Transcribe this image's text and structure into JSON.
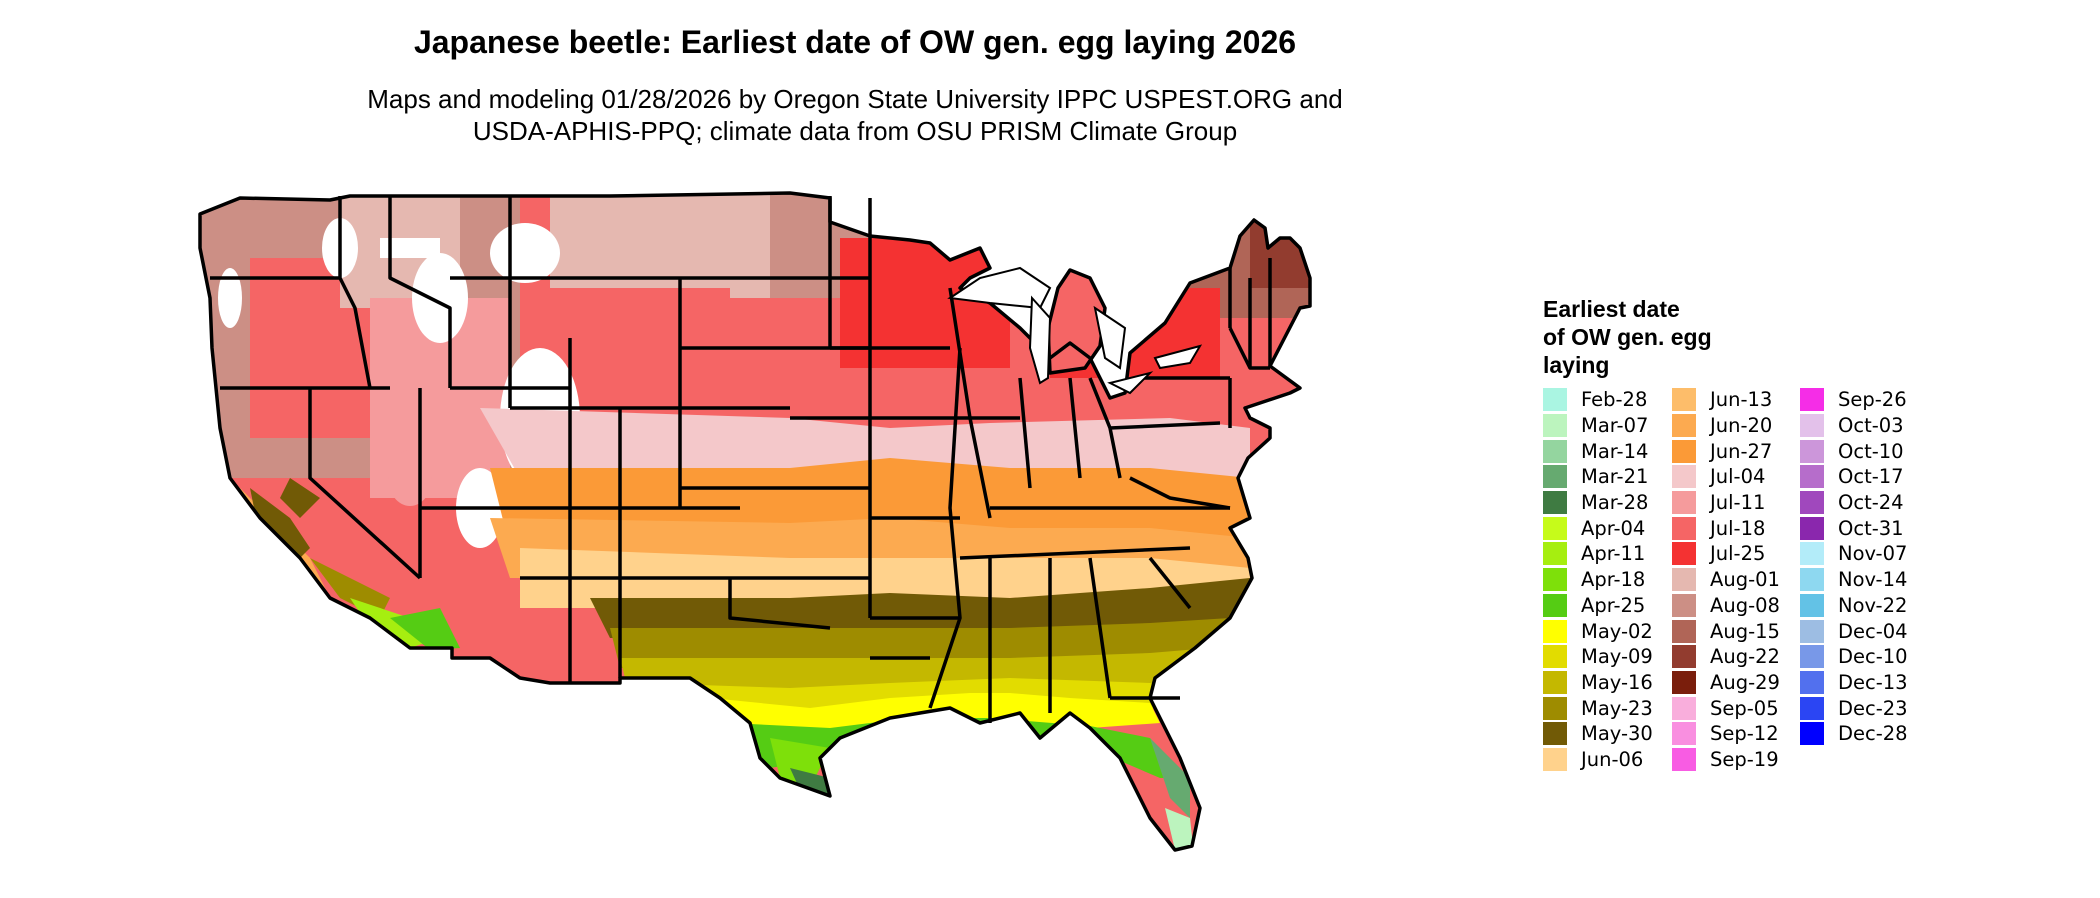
{
  "title": "Japanese beetle: Earliest date of OW gen. egg laying 2026",
  "subtitle_line1": "Maps and modeling 01/28/2026 by Oregon State University IPPC USPEST.ORG and",
  "subtitle_line2": "USDA-APHIS-PPQ; climate data from OSU PRISM Climate Group",
  "legend": {
    "title_lines": [
      "Earliest date",
      "of OW gen. egg",
      "laying"
    ],
    "columns": [
      [
        {
          "label": "Feb-28",
          "color": "#aaf5e2"
        },
        {
          "label": "Mar-07",
          "color": "#bcf4be"
        },
        {
          "label": "Mar-14",
          "color": "#94d59f"
        },
        {
          "label": "Mar-21",
          "color": "#66aa70"
        },
        {
          "label": "Mar-28",
          "color": "#3f7b42"
        },
        {
          "label": "Apr-04",
          "color": "#c6fb1a"
        },
        {
          "label": "Apr-11",
          "color": "#a6ee10"
        },
        {
          "label": "Apr-18",
          "color": "#7ee00a"
        },
        {
          "label": "Apr-25",
          "color": "#55cc14"
        },
        {
          "label": "May-02",
          "color": "#ffff00"
        },
        {
          "label": "May-09",
          "color": "#e2dc00"
        },
        {
          "label": "May-16",
          "color": "#c4b800"
        },
        {
          "label": "May-23",
          "color": "#9e8c00"
        },
        {
          "label": "May-30",
          "color": "#715a06"
        },
        {
          "label": "Jun-06",
          "color": "#ffd28c"
        }
      ],
      [
        {
          "label": "Jun-13",
          "color": "#fdbd6a"
        },
        {
          "label": "Jun-20",
          "color": "#fcaa50"
        },
        {
          "label": "Jun-27",
          "color": "#fb9a37"
        },
        {
          "label": "Jul-04",
          "color": "#f4c8ca"
        },
        {
          "label": "Jul-11",
          "color": "#f59b9c"
        },
        {
          "label": "Jul-18",
          "color": "#f56565"
        },
        {
          "label": "Jul-25",
          "color": "#f43232"
        },
        {
          "label": "Aug-01",
          "color": "#e5b8b0"
        },
        {
          "label": "Aug-08",
          "color": "#cc8f85"
        },
        {
          "label": "Aug-15",
          "color": "#b06557"
        },
        {
          "label": "Aug-22",
          "color": "#923c2f"
        },
        {
          "label": "Aug-29",
          "color": "#7a1e0c"
        },
        {
          "label": "Sep-05",
          "color": "#f9aedc"
        },
        {
          "label": "Sep-12",
          "color": "#f98fe0"
        },
        {
          "label": "Sep-19",
          "color": "#f85ce3"
        }
      ],
      [
        {
          "label": "Sep-26",
          "color": "#f52de7"
        },
        {
          "label": "Oct-03",
          "color": "#e3c1ea"
        },
        {
          "label": "Oct-10",
          "color": "#cc96da"
        },
        {
          "label": "Oct-17",
          "color": "#b66dcb"
        },
        {
          "label": "Oct-24",
          "color": "#a048bd"
        },
        {
          "label": "Oct-31",
          "color": "#8a27ad"
        },
        {
          "label": "Nov-07",
          "color": "#b3ecf9"
        },
        {
          "label": "Nov-14",
          "color": "#8ed8f0"
        },
        {
          "label": "Nov-22",
          "color": "#63c2e6"
        },
        {
          "label": "Dec-04",
          "color": "#9dbde3"
        },
        {
          "label": "Dec-10",
          "color": "#7898e8"
        },
        {
          "label": "Dec-13",
          "color": "#5270ee"
        },
        {
          "label": "Dec-23",
          "color": "#2b45f3"
        },
        {
          "label": "Dec-28",
          "color": "#0000ff"
        }
      ]
    ]
  }
}
